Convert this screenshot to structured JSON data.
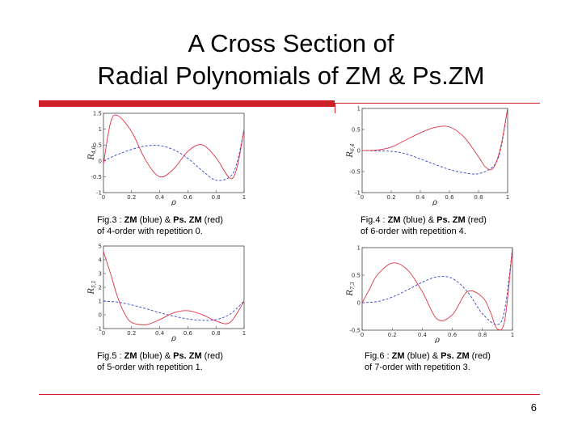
{
  "slide": {
    "title_line1": "A Cross Section of",
    "title_line2": "Radial Polynomials of ZM & Ps.ZM",
    "page_number": "6",
    "accent_color": "#cc1f26"
  },
  "captions": [
    {
      "line1_pre": "Fig.3 : ",
      "zm": "ZM",
      "mid": " (blue) & ",
      "ps": "Ps. ZM",
      "post": " (red)",
      "line2": "of 4-order with repetition 0."
    },
    {
      "line1_pre": "Fig.4 : ",
      "zm": "ZM",
      "mid": " (blue) & ",
      "ps": "Ps. ZM",
      "post": " (red)",
      "line2": "of 6-order with repetition 4."
    },
    {
      "line1_pre": "Fig.5 : ",
      "zm": "ZM",
      "mid": " (blue) & ",
      "ps": "Ps. ZM",
      "post": " (red)",
      "line2": "of 5-order with repetition 1."
    },
    {
      "line1_pre": "Fig.6 : ",
      "zm": "ZM",
      "mid": " (blue) & ",
      "ps": "Ps. ZM",
      "post": " (red)",
      "line2": "of 7-order with repetition 3."
    }
  ],
  "chart_data": [
    {
      "type": "line",
      "ylabel": "R_{4,0}",
      "xlabel": "ρ",
      "xlim": [
        0,
        1
      ],
      "ylim": [
        -1,
        1.5
      ],
      "xticks": [
        "0",
        "0.2",
        "0.4",
        "0.6",
        "0.8",
        "1"
      ],
      "yticks": [
        "-1",
        "-0.5",
        "0",
        "0.5",
        "1",
        "1.5"
      ],
      "series": [
        {
          "color": "#3344cc",
          "style": "dashed",
          "x": [
            0,
            0.1,
            0.2,
            0.3,
            0.4,
            0.5,
            0.6,
            0.7,
            0.8,
            0.9,
            0.95,
            1
          ],
          "y": [
            0,
            0.2,
            0.36,
            0.47,
            0.48,
            0.35,
            0.08,
            -0.3,
            -0.61,
            -0.5,
            -0.05,
            1
          ]
        },
        {
          "color": "#dd3344",
          "style": "solid",
          "x": [
            0,
            0.05,
            0.1,
            0.2,
            0.3,
            0.4,
            0.5,
            0.6,
            0.7,
            0.8,
            0.9,
            0.95,
            1
          ],
          "y": [
            -0.1,
            1.2,
            1.43,
            0.92,
            0.02,
            -0.5,
            -0.25,
            0.3,
            0.51,
            0.1,
            -0.55,
            -0.2,
            1
          ]
        }
      ]
    },
    {
      "type": "line",
      "ylabel": "R_{6,4}",
      "xlabel": "ρ",
      "xlim": [
        0,
        1
      ],
      "ylim": [
        -1,
        1
      ],
      "xticks": [
        "0",
        "0.2",
        "0.4",
        "0.6",
        "0.8",
        "1"
      ],
      "yticks": [
        "-1",
        "-0.5",
        "0",
        "0.5",
        "1"
      ],
      "series": [
        {
          "color": "#3344cc",
          "style": "dashed",
          "x": [
            0,
            0.2,
            0.3,
            0.4,
            0.5,
            0.6,
            0.7,
            0.8,
            0.9,
            0.95,
            1
          ],
          "y": [
            0,
            -0.02,
            -0.08,
            -0.2,
            -0.33,
            -0.45,
            -0.53,
            -0.55,
            -0.38,
            0,
            1
          ]
        },
        {
          "color": "#dd3344",
          "style": "solid",
          "x": [
            0,
            0.1,
            0.2,
            0.3,
            0.4,
            0.5,
            0.6,
            0.7,
            0.8,
            0.85,
            0.9,
            0.95,
            1
          ],
          "y": [
            0,
            0.01,
            0.08,
            0.25,
            0.42,
            0.55,
            0.56,
            0.32,
            -0.15,
            -0.4,
            -0.42,
            0.05,
            1
          ]
        }
      ]
    },
    {
      "type": "line",
      "ylabel": "R_{5,1}",
      "xlabel": "ρ",
      "xlim": [
        0,
        1
      ],
      "ylim": [
        -1,
        5
      ],
      "xticks": [
        "0",
        "0.2",
        "0.4",
        "0.6",
        "0.8",
        "1"
      ],
      "yticks": [
        "-1",
        "0",
        "1",
        "2",
        "3",
        "4",
        "5"
      ],
      "series": [
        {
          "color": "#3344cc",
          "style": "dashed",
          "x": [
            0,
            0.1,
            0.2,
            0.3,
            0.4,
            0.5,
            0.6,
            0.7,
            0.8,
            0.9,
            1
          ],
          "y": [
            1,
            0.92,
            0.72,
            0.45,
            0.15,
            -0.1,
            -0.3,
            -0.4,
            -0.35,
            0.05,
            1
          ]
        },
        {
          "color": "#dd3344",
          "style": "solid",
          "x": [
            0,
            0.05,
            0.1,
            0.15,
            0.2,
            0.3,
            0.4,
            0.5,
            0.6,
            0.7,
            0.8,
            0.9,
            1
          ],
          "y": [
            4.6,
            3.0,
            1.3,
            0.1,
            -0.55,
            -0.72,
            -0.35,
            0.15,
            0.3,
            0.02,
            -0.45,
            -0.55,
            1
          ]
        }
      ]
    },
    {
      "type": "line",
      "ylabel": "R_{7,3}",
      "xlabel": "ρ",
      "xlim": [
        0,
        1
      ],
      "ylim": [
        -0.5,
        1
      ],
      "xticks": [
        "0",
        "0.2",
        "0.4",
        "0.6",
        "0.8",
        "1"
      ],
      "yticks": [
        "-0.5",
        "0",
        "0.5",
        "1"
      ],
      "series": [
        {
          "color": "#3344cc",
          "style": "dashed",
          "x": [
            0,
            0.1,
            0.2,
            0.3,
            0.4,
            0.5,
            0.6,
            0.7,
            0.8,
            0.9,
            0.95,
            1
          ],
          "y": [
            0,
            0.02,
            0.1,
            0.23,
            0.37,
            0.47,
            0.44,
            0.2,
            -0.2,
            -0.4,
            -0.1,
            1
          ]
        },
        {
          "color": "#dd3344",
          "style": "solid",
          "x": [
            0,
            0.05,
            0.1,
            0.2,
            0.3,
            0.4,
            0.5,
            0.6,
            0.7,
            0.8,
            0.85,
            0.9,
            0.95,
            1
          ],
          "y": [
            0,
            0.25,
            0.5,
            0.72,
            0.6,
            0.2,
            -0.3,
            -0.22,
            0.2,
            0.1,
            -0.15,
            -0.48,
            -0.3,
            1
          ]
        }
      ]
    }
  ]
}
